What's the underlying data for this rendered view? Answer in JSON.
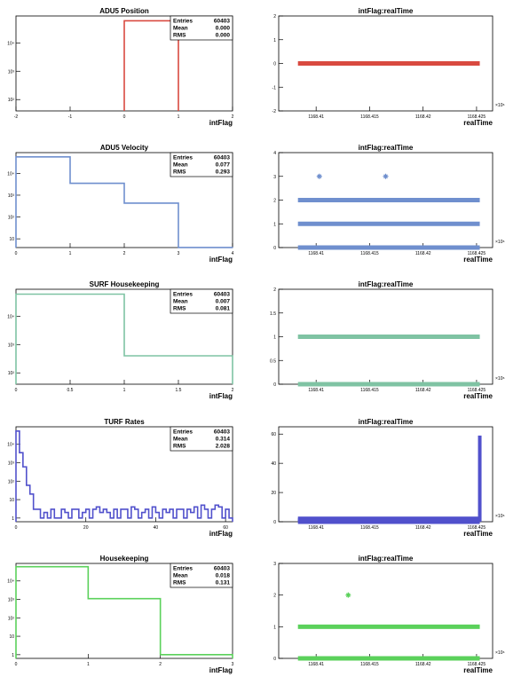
{
  "stats_labels": {
    "entries": "Entries",
    "mean": "Mean",
    "rms": "RMS"
  },
  "chart_data": [
    {
      "type": "histogram",
      "title": "ADU5 Position",
      "xlabel": "intFlag",
      "xlim": [
        -2,
        2
      ],
      "log_y": true,
      "color": "#d94a40",
      "x_ticks": [
        "-2",
        "-1",
        "0",
        "1",
        "2"
      ],
      "y_ticks": [
        "10²",
        "10³",
        "10⁴"
      ],
      "stats": {
        "entries": "60403",
        "mean": "0.000",
        "rms": "0.000"
      },
      "bins": [
        {
          "x0": 0,
          "x1": 1,
          "count": 60403
        }
      ]
    },
    {
      "type": "scatter",
      "title": "intFlag:realTime",
      "xlabel": "realTime",
      "xlim": [
        1168.4065,
        1168.4265
      ],
      "ylim": [
        -2,
        2
      ],
      "color": "#d94a40",
      "x_ticks": [
        "1168.41",
        "1168.415",
        "1168.42",
        "1168.425"
      ],
      "y_ticks": [
        "-2",
        "-1",
        "0",
        "1",
        "2"
      ],
      "x_exponent": "×10⁶",
      "bands": [
        {
          "y": 0,
          "x_from": 1168.4083,
          "x_to": 1168.4253
        }
      ],
      "points": []
    },
    {
      "type": "histogram",
      "title": "ADU5 Velocity",
      "xlabel": "intFlag",
      "xlim": [
        0,
        4
      ],
      "log_y": true,
      "color": "#6f8fce",
      "x_ticks": [
        "0",
        "1",
        "2",
        "3",
        "4"
      ],
      "y_ticks": [
        "10",
        "10²",
        "10³",
        "10⁴"
      ],
      "stats": {
        "entries": "60403",
        "mean": "0.077",
        "rms": "0.293"
      },
      "bins": [
        {
          "x0": 0,
          "x1": 1,
          "count": 56900
        },
        {
          "x0": 1,
          "x1": 2,
          "count": 3500
        },
        {
          "x0": 2,
          "x1": 3,
          "count": 430
        },
        {
          "x0": 3,
          "x1": 4,
          "count": 4
        }
      ]
    },
    {
      "type": "scatter",
      "title": "intFlag:realTime",
      "xlabel": "realTime",
      "xlim": [
        1168.4065,
        1168.4265
      ],
      "ylim": [
        0,
        4
      ],
      "color": "#6f8fce",
      "x_ticks": [
        "1168.41",
        "1168.415",
        "1168.42",
        "1168.425"
      ],
      "y_ticks": [
        "0",
        "1",
        "2",
        "3",
        "4"
      ],
      "x_exponent": "×10⁶",
      "bands": [
        {
          "y": 0,
          "x_from": 1168.4083,
          "x_to": 1168.4253
        },
        {
          "y": 1,
          "x_from": 1168.4083,
          "x_to": 1168.4253
        },
        {
          "y": 2,
          "x_from": 1168.4083,
          "x_to": 1168.4253
        }
      ],
      "points": [
        {
          "x": 1168.4103,
          "y": 3
        },
        {
          "x": 1168.4165,
          "y": 3
        }
      ]
    },
    {
      "type": "histogram",
      "title": "SURF Housekeeping",
      "xlabel": "intFlag",
      "xlim": [
        0,
        2
      ],
      "log_y": true,
      "color": "#7fc3a3",
      "x_ticks": [
        "0",
        "0.5",
        "1",
        "1.5",
        "2"
      ],
      "y_ticks": [
        "10²",
        "10³",
        "10⁴"
      ],
      "stats": {
        "entries": "60403",
        "mean": "0.007",
        "rms": "0.081"
      },
      "bins": [
        {
          "x0": 0,
          "x1": 1,
          "count": 60000
        },
        {
          "x0": 1,
          "x1": 2,
          "count": 400
        }
      ]
    },
    {
      "type": "scatter",
      "title": "intFlag:realTime",
      "xlabel": "realTime",
      "xlim": [
        1168.4065,
        1168.4265
      ],
      "ylim": [
        0,
        2
      ],
      "color": "#7fc3a3",
      "x_ticks": [
        "1168.41",
        "1168.415",
        "1168.42",
        "1168.425"
      ],
      "y_ticks": [
        "0",
        "0.5",
        "1",
        "1.5",
        "2"
      ],
      "x_exponent": "×10⁶",
      "bands": [
        {
          "y": 0,
          "x_from": 1168.4083,
          "x_to": 1168.4253
        },
        {
          "y": 1,
          "x_from": 1168.4083,
          "x_to": 1168.4253
        }
      ],
      "points": []
    },
    {
      "type": "histogram",
      "title": "TURF Rates",
      "xlabel": "intFlag",
      "xlim": [
        0,
        62
      ],
      "log_y": true,
      "color": "#5151cc",
      "x_ticks": [
        "0",
        "20",
        "40",
        "60"
      ],
      "y_ticks": [
        "1",
        "10",
        "10²",
        "10³",
        "10⁴"
      ],
      "stats": {
        "entries": "60403",
        "mean": "0.314",
        "rms": "2.028"
      },
      "counts": [
        52000,
        3500,
        600,
        60,
        20,
        3,
        3,
        1,
        2,
        1,
        3,
        1,
        1,
        3,
        2,
        1,
        3,
        3,
        1,
        2,
        3,
        1,
        3,
        4,
        2,
        3,
        2,
        1,
        3,
        1,
        3,
        3,
        1,
        4,
        3,
        1,
        2,
        3,
        1,
        4,
        2,
        1,
        3,
        2,
        3,
        1,
        3,
        3,
        1,
        3,
        2,
        4,
        1,
        5,
        3,
        1,
        3,
        5,
        4,
        1,
        3,
        1
      ]
    },
    {
      "type": "scatter",
      "title": "intFlag:realTime",
      "xlabel": "realTime",
      "xlim": [
        1168.4065,
        1168.4265
      ],
      "ylim": [
        0,
        65
      ],
      "color": "#5151cc",
      "x_ticks": [
        "1168.41",
        "1168.415",
        "1168.42",
        "1168.425"
      ],
      "y_ticks": [
        "0",
        "20",
        "40",
        "60"
      ],
      "x_exponent": "×10⁶",
      "bands": [
        {
          "y": 0,
          "x_from": 1168.4083,
          "x_to": 1168.4253
        },
        {
          "y": 1,
          "x_from": 1168.4083,
          "x_to": 1168.4253
        },
        {
          "y": 2,
          "x_from": 1168.4083,
          "x_to": 1168.4253
        }
      ],
      "spike": {
        "x": 1168.4253,
        "y_from": 0,
        "y_to": 59
      },
      "points": []
    },
    {
      "type": "histogram",
      "title": "Housekeeping",
      "xlabel": "intFlag",
      "xlim": [
        0,
        3
      ],
      "log_y": true,
      "color": "#5bd15b",
      "x_ticks": [
        "0",
        "1",
        "2",
        "3"
      ],
      "y_ticks": [
        "1",
        "10",
        "10²",
        "10³",
        "10⁴"
      ],
      "stats": {
        "entries": "60403",
        "mean": "0.018",
        "rms": "0.131"
      },
      "bins": [
        {
          "x0": 0,
          "x1": 1,
          "count": 59300
        },
        {
          "x0": 1,
          "x1": 2,
          "count": 1100
        },
        {
          "x0": 2,
          "x1": 3,
          "count": 1
        }
      ]
    },
    {
      "type": "scatter",
      "title": "intFlag:realTime",
      "xlabel": "realTime",
      "xlim": [
        1168.4065,
        1168.4265
      ],
      "ylim": [
        0,
        3
      ],
      "color": "#5bd15b",
      "x_ticks": [
        "1168.41",
        "1168.415",
        "1168.42",
        "1168.425"
      ],
      "y_ticks": [
        "0",
        "1",
        "2",
        "3"
      ],
      "x_exponent": "×10⁶",
      "bands": [
        {
          "y": 0,
          "x_from": 1168.4083,
          "x_to": 1168.4253
        },
        {
          "y": 1,
          "x_from": 1168.4083,
          "x_to": 1168.4253
        }
      ],
      "points": [
        {
          "x": 1168.413,
          "y": 2
        }
      ]
    }
  ]
}
